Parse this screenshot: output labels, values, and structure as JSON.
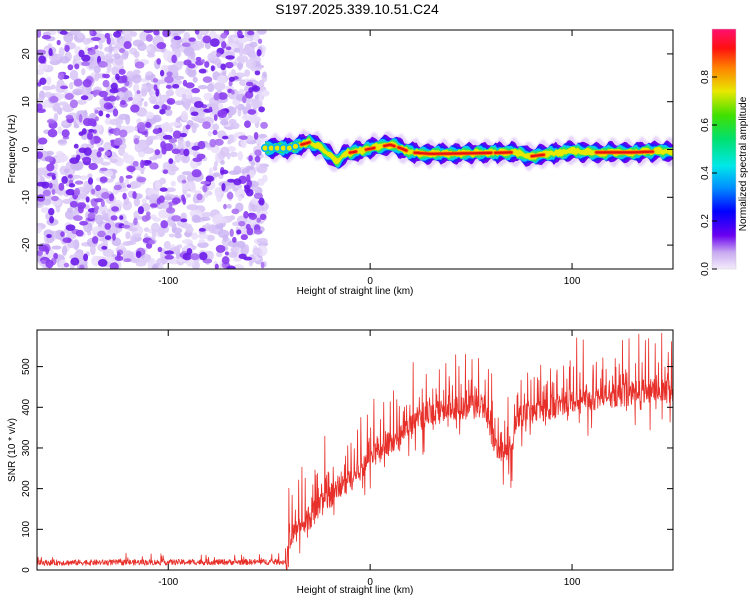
{
  "title": "S197.2025.339.10.51.C24",
  "colors": {
    "snr_line": "#e8302a",
    "axis": "#000000"
  },
  "chart_data": [
    {
      "type": "heatmap",
      "xlabel": "Height of straight line (km)",
      "ylabel": "Frequency (Hz)",
      "xlim": [
        -165,
        150
      ],
      "ylim": [
        -25,
        25
      ],
      "xticks": [
        -100,
        0,
        100
      ],
      "xtick_labels": [
        "-100",
        "0",
        "100"
      ],
      "yticks": [
        -20,
        -10,
        0,
        10,
        20
      ],
      "ytick_labels": [
        "-20",
        "-10",
        "0",
        "10",
        "20"
      ],
      "noise_region_x": [
        -165,
        -52
      ],
      "signal_region_x": [
        -52,
        150
      ],
      "signal_center_freq": [
        [
          -52,
          0.3
        ],
        [
          -40,
          0.3
        ],
        [
          -30,
          1.5
        ],
        [
          -25,
          0.5
        ],
        [
          -20,
          -1.0
        ],
        [
          -16,
          -2.5
        ],
        [
          -12,
          -0.8
        ],
        [
          -5,
          -0.3
        ],
        [
          5,
          0.6
        ],
        [
          10,
          1.0
        ],
        [
          15,
          0.3
        ],
        [
          20,
          -0.6
        ],
        [
          30,
          -0.9
        ],
        [
          50,
          -0.8
        ],
        [
          70,
          -0.6
        ],
        [
          80,
          -1.4
        ],
        [
          90,
          -0.9
        ],
        [
          100,
          -0.3
        ],
        [
          110,
          -0.6
        ],
        [
          130,
          -0.6
        ],
        [
          150,
          -0.3
        ]
      ],
      "colorbar": {
        "label": "Normalized spectral amplitude",
        "ticks": [
          "0.0",
          "0.2",
          "0.4",
          "0.6",
          "0.8"
        ],
        "tick_values": [
          0.0,
          0.2,
          0.4,
          0.6,
          0.8
        ],
        "range": [
          0,
          1
        ]
      }
    },
    {
      "type": "line",
      "xlabel": "Height of straight line (km)",
      "ylabel": "SNR (10 * v/v)",
      "xlim": [
        -165,
        150
      ],
      "ylim": [
        0,
        590
      ],
      "xticks": [
        -100,
        0,
        100
      ],
      "xtick_labels": [
        "-100",
        "0",
        "100"
      ],
      "yticks": [
        0,
        100,
        200,
        300,
        400,
        500
      ],
      "ytick_labels": [
        "0",
        "100",
        "200",
        "300",
        "400",
        "500"
      ],
      "series": [
        {
          "name": "SNR",
          "envelope_x": [
            -165,
            -42,
            -40,
            -30,
            -20,
            -10,
            0,
            10,
            20,
            30,
            40,
            50,
            57,
            60,
            62,
            70,
            73,
            80,
            90,
            100,
            110,
            120,
            130,
            140,
            150
          ],
          "envelope_y": [
            18,
            20,
            120,
            170,
            220,
            260,
            320,
            350,
            390,
            420,
            440,
            440,
            445,
            380,
            340,
            330,
            420,
            430,
            440,
            450,
            460,
            470,
            475,
            480,
            480
          ]
        }
      ]
    }
  ]
}
